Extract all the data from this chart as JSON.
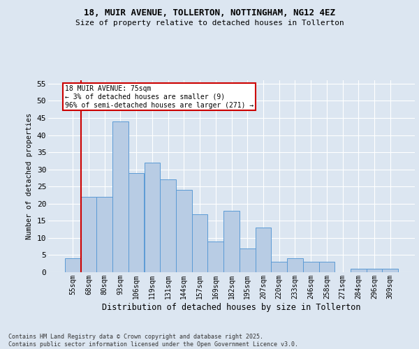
{
  "title1": "18, MUIR AVENUE, TOLLERTON, NOTTINGHAM, NG12 4EZ",
  "title2": "Size of property relative to detached houses in Tollerton",
  "xlabel": "Distribution of detached houses by size in Tollerton",
  "ylabel": "Number of detached properties",
  "categories": [
    "55sqm",
    "68sqm",
    "80sqm",
    "93sqm",
    "106sqm",
    "119sqm",
    "131sqm",
    "144sqm",
    "157sqm",
    "169sqm",
    "182sqm",
    "195sqm",
    "207sqm",
    "220sqm",
    "233sqm",
    "246sqm",
    "258sqm",
    "271sqm",
    "284sqm",
    "296sqm",
    "309sqm"
  ],
  "values": [
    4,
    22,
    22,
    44,
    29,
    32,
    27,
    24,
    17,
    9,
    18,
    7,
    13,
    3,
    4,
    3,
    3,
    0,
    1,
    1,
    1
  ],
  "bar_color": "#b8cce4",
  "bar_edge_color": "#5b9bd5",
  "annotation_text_line1": "18 MUIR AVENUE: 75sqm",
  "annotation_text_line2": "← 3% of detached houses are smaller (9)",
  "annotation_text_line3": "96% of semi-detached houses are larger (271) →",
  "annotation_box_color": "#ffffff",
  "annotation_box_edge_color": "#cc0000",
  "red_line_color": "#cc0000",
  "ylim": [
    0,
    56
  ],
  "yticks": [
    0,
    5,
    10,
    15,
    20,
    25,
    30,
    35,
    40,
    45,
    50,
    55
  ],
  "footer_line1": "Contains HM Land Registry data © Crown copyright and database right 2025.",
  "footer_line2": "Contains public sector information licensed under the Open Government Licence v3.0.",
  "bg_color": "#dce6f1",
  "grid_color": "#ffffff"
}
